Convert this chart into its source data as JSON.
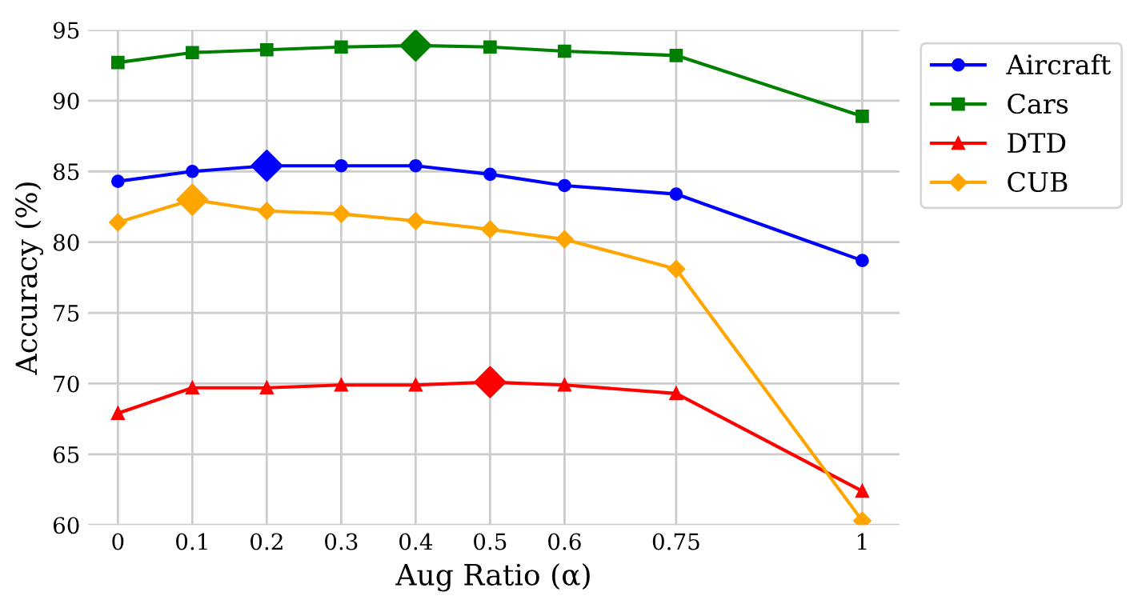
{
  "chart_data": {
    "type": "line",
    "xlabel": "Aug Ratio (α)",
    "ylabel": "Accuracy (%)",
    "x": [
      0,
      0.1,
      0.2,
      0.3,
      0.4,
      0.5,
      0.6,
      0.75,
      1
    ],
    "xlim": [
      -0.04,
      1.05
    ],
    "xticks": [
      0,
      0.1,
      0.2,
      0.3,
      0.4,
      0.5,
      0.6,
      0.75,
      1
    ],
    "ylim": [
      60,
      95
    ],
    "yticks": [
      60,
      65,
      70,
      75,
      80,
      85,
      90,
      95
    ],
    "grid": true,
    "legend": "top right",
    "series": [
      {
        "name": "Aircraft",
        "color": "#0000ff",
        "marker": "circle",
        "values": [
          84.3,
          85.0,
          85.4,
          85.4,
          85.4,
          84.8,
          84.0,
          83.4,
          78.7
        ]
      },
      {
        "name": "Cars",
        "color": "#008000",
        "marker": "square",
        "values": [
          92.7,
          93.4,
          93.6,
          93.8,
          93.9,
          93.8,
          93.5,
          93.2,
          88.9
        ]
      },
      {
        "name": "DTD",
        "color": "#ff0000",
        "marker": "triangle",
        "values": [
          67.9,
          69.7,
          69.7,
          69.9,
          69.9,
          70.1,
          69.9,
          69.3,
          62.4
        ]
      },
      {
        "name": "CUB",
        "color": "#ffa500",
        "marker": "diamond",
        "values": [
          81.4,
          83.0,
          82.2,
          82.0,
          81.5,
          80.9,
          80.2,
          78.1,
          60.3
        ]
      },
      {
        "type": "scatter",
        "color": "#0000ff",
        "marker": "diamond",
        "x": [
          0.2
        ],
        "values": [
          85.4
        ]
      },
      {
        "type": "scatter",
        "color": "#008000",
        "marker": "diamond",
        "x": [
          0.4
        ],
        "values": [
          93.9
        ]
      },
      {
        "type": "scatter",
        "color": "#ff0000",
        "marker": "diamond",
        "x": [
          0.5
        ],
        "values": [
          70.1
        ]
      },
      {
        "type": "scatter",
        "color": "#ffa500",
        "marker": "diamond",
        "x": [
          0.1
        ],
        "values": [
          83.0
        ]
      }
    ]
  }
}
